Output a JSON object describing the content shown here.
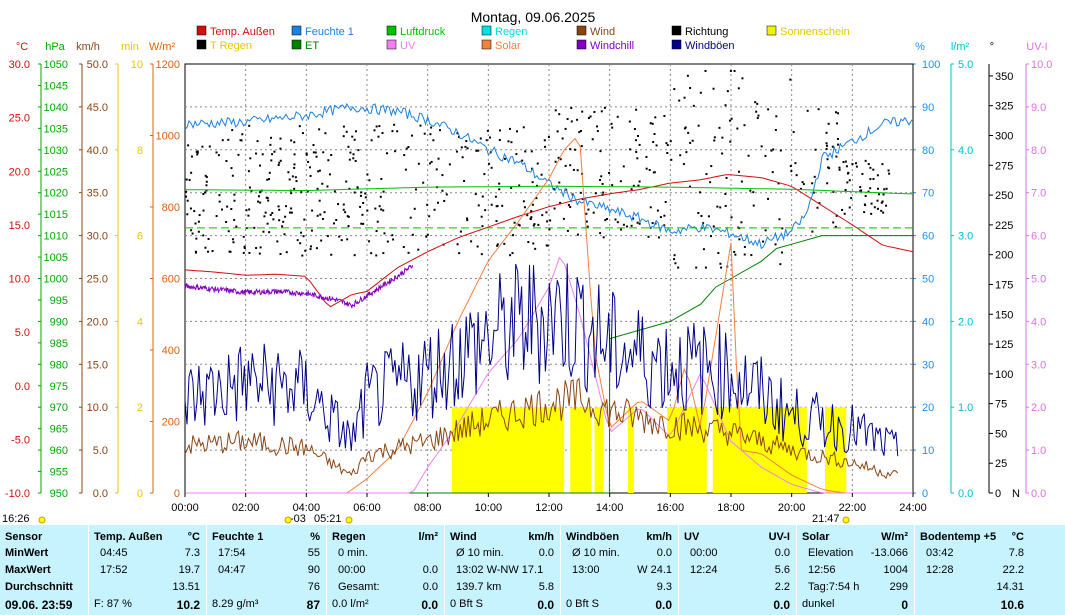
{
  "title": "Montag, 09.06.2025",
  "left_units": [
    {
      "text": "°C",
      "color": "#d01010"
    },
    {
      "text": "hPa",
      "color": "#00aa00"
    },
    {
      "text": "km/h",
      "color": "#8b4513"
    },
    {
      "text": "min",
      "color": "#e8c800"
    },
    {
      "text": "W/m²",
      "color": "#e06010"
    }
  ],
  "right_units": [
    {
      "text": "%",
      "color": "#1e90ff"
    },
    {
      "text": "l/m²",
      "color": "#00c0d0"
    },
    {
      "text": "°",
      "color": "#000000"
    },
    {
      "text": "UV-I",
      "color": "#e070e0"
    }
  ],
  "legend": [
    {
      "label": "Temp. Außen",
      "color": "#d01010"
    },
    {
      "label": "Feuchte 1",
      "color": "#1e80e0"
    },
    {
      "label": "Luftdruck",
      "color": "#00c000"
    },
    {
      "label": "Regen",
      "color": "#00e0e0"
    },
    {
      "label": "Wind",
      "color": "#8b4513"
    },
    {
      "label": "Richtung",
      "color": "#000000"
    },
    {
      "label": "Sonnenschein",
      "color": "#f0f000"
    },
    {
      "label": "T Regen",
      "color": "#000000"
    },
    {
      "label": "ET",
      "color": "#008000"
    },
    {
      "label": "UV",
      "color": "#f080f0"
    },
    {
      "label": "Solar",
      "color": "#f08040"
    },
    {
      "label": "Windchill",
      "color": "#8000c0"
    },
    {
      "label": "Windböen",
      "color": "#00008b"
    }
  ],
  "axes": {
    "temp": {
      "ticks": [
        "30.0",
        "25.0",
        "20.0",
        "15.0",
        "10.0",
        "5.0",
        "0.0",
        "-5.0",
        "-10.0"
      ],
      "color": "#d01010"
    },
    "hpa": {
      "ticks": [
        "1050",
        "1045",
        "1040",
        "1035",
        "1030",
        "1025",
        "1020",
        "1015",
        "1010",
        "1005",
        "1000",
        "995",
        "990",
        "985",
        "980",
        "975",
        "970",
        "965",
        "960",
        "955",
        "950"
      ],
      "color": "#00aa00"
    },
    "kmh": {
      "ticks": [
        "50.0",
        "45.0",
        "40.0",
        "35.0",
        "30.0",
        "25.0",
        "20.0",
        "15.0",
        "10.0",
        "5.0",
        "0.0"
      ],
      "color": "#8b4513"
    },
    "min": {
      "ticks": [
        "10",
        "8",
        "6",
        "4",
        "2",
        "0"
      ],
      "color": "#e8c800"
    },
    "wm2": {
      "ticks": [
        "1200",
        "1000",
        "800",
        "600",
        "400",
        "200",
        "0"
      ],
      "color": "#e06010"
    },
    "pct": {
      "ticks": [
        "100",
        "90",
        "80",
        "70",
        "60",
        "50",
        "40",
        "30",
        "20",
        "10",
        "0"
      ],
      "color": "#1e90ff"
    },
    "lm2": {
      "ticks": [
        "5.0",
        "4.0",
        "3.0",
        "2.0",
        "1.0",
        "0.0"
      ],
      "color": "#00c0d0"
    },
    "deg": {
      "ticks": [
        "350",
        "325",
        "300",
        "275",
        "250",
        "225",
        "200",
        "175",
        "150",
        "125",
        "100",
        "75",
        "50",
        "25",
        "0"
      ],
      "last": "N",
      "color": "#000000"
    },
    "uvi": {
      "ticks": [
        "10.0",
        "9.0",
        "8.0",
        "7.0",
        "6.0",
        "5.0",
        "4.0",
        "3.0",
        "2.0",
        "1.0",
        "0.0"
      ],
      "color": "#e070e0"
    },
    "x_ticks": [
      "00:00",
      "02:00",
      "04:00",
      "06:00",
      "08:00",
      "10:00",
      "12:00",
      "14:00",
      "16:00",
      "18:00",
      "20:00",
      "22:00",
      "24:00"
    ]
  },
  "time_markers": [
    {
      "text": "16:26"
    },
    {
      "text": "-03"
    },
    {
      "text": "05:21"
    },
    {
      "text": "21:47"
    }
  ],
  "chart_data": {
    "type": "line",
    "x_range": [
      0,
      24
    ],
    "x_unit": "hours",
    "series": [
      {
        "name": "Temp. Außen",
        "unit": "°C",
        "points": [
          [
            0,
            10.8
          ],
          [
            1,
            10.6
          ],
          [
            2,
            10.3
          ],
          [
            3,
            10.4
          ],
          [
            4,
            10.2
          ],
          [
            4.75,
            7.3
          ],
          [
            5.5,
            8.5
          ],
          [
            6,
            8.8
          ],
          [
            7,
            11
          ],
          [
            8,
            12.5
          ],
          [
            9,
            13.8
          ],
          [
            10,
            14.8
          ],
          [
            11,
            15.8
          ],
          [
            12,
            16.7
          ],
          [
            13,
            17.4
          ],
          [
            14,
            17.9
          ],
          [
            15,
            18.3
          ],
          [
            16,
            18.9
          ],
          [
            17,
            19.2
          ],
          [
            17.87,
            19.7
          ],
          [
            19,
            19.4
          ],
          [
            20,
            18.6
          ],
          [
            21,
            16.8
          ],
          [
            22,
            15.0
          ],
          [
            23,
            13.1
          ],
          [
            24,
            12.5
          ]
        ]
      },
      {
        "name": "Windchill",
        "unit": "°C",
        "points": [
          [
            0,
            9.3
          ],
          [
            1,
            9.0
          ],
          [
            2,
            8.7
          ],
          [
            3,
            8.8
          ],
          [
            4,
            8.6
          ],
          [
            5,
            8.0
          ],
          [
            5.5,
            7.5
          ],
          [
            6,
            8.4
          ],
          [
            7,
            10.2
          ],
          [
            7.5,
            11.2
          ]
        ]
      },
      {
        "name": "Feuchte 1",
        "unit": "%",
        "points": [
          [
            0,
            86
          ],
          [
            2,
            86.5
          ],
          [
            4,
            88
          ],
          [
            5.5,
            90
          ],
          [
            7,
            89
          ],
          [
            8,
            87
          ],
          [
            9,
            84
          ],
          [
            10,
            80
          ],
          [
            11,
            77
          ],
          [
            12,
            72
          ],
          [
            13,
            68
          ],
          [
            14,
            66
          ],
          [
            15,
            64
          ],
          [
            16,
            61
          ],
          [
            17,
            62
          ],
          [
            18,
            60.5
          ],
          [
            19,
            58
          ],
          [
            20,
            61
          ],
          [
            20.5,
            65
          ],
          [
            21,
            78
          ],
          [
            22,
            82
          ],
          [
            23,
            86
          ],
          [
            24,
            87
          ]
        ]
      },
      {
        "name": "Luftdruck",
        "unit": "hPa",
        "points": [
          [
            0,
            1020.7
          ],
          [
            4,
            1020.5
          ],
          [
            8,
            1021.3
          ],
          [
            12,
            1021.5
          ],
          [
            16,
            1021.3
          ],
          [
            20,
            1020.8
          ],
          [
            24,
            1019.7
          ]
        ]
      },
      {
        "name": "ET",
        "unit": "l/m²",
        "points": [
          [
            0,
            0
          ],
          [
            13.99,
            0
          ],
          [
            14,
            1.8
          ],
          [
            15,
            1.9
          ],
          [
            16,
            2.0
          ],
          [
            17,
            2.2
          ],
          [
            17.5,
            2.4
          ],
          [
            18,
            2.5
          ],
          [
            19,
            2.7
          ],
          [
            19.5,
            2.85
          ],
          [
            20,
            2.9
          ],
          [
            21,
            3.0
          ],
          [
            22,
            3.0
          ],
          [
            24,
            3.0
          ]
        ]
      },
      {
        "name": "Solar",
        "unit": "W/m²",
        "points": [
          [
            0,
            0
          ],
          [
            5.35,
            0
          ],
          [
            6,
            40
          ],
          [
            7,
            120
          ],
          [
            8,
            280
          ],
          [
            9,
            480
          ],
          [
            10,
            650
          ],
          [
            11,
            760
          ],
          [
            12,
            880
          ],
          [
            12.5,
            960
          ],
          [
            13,
            1004
          ],
          [
            13.5,
            400
          ],
          [
            14,
            180
          ],
          [
            15,
            260
          ],
          [
            16,
            200
          ],
          [
            16.5,
            360
          ],
          [
            17,
            180
          ],
          [
            18,
            700
          ],
          [
            18.3,
            120
          ],
          [
            19,
            110
          ],
          [
            20,
            50
          ],
          [
            21,
            10
          ],
          [
            21.75,
            0
          ],
          [
            24,
            0
          ]
        ]
      },
      {
        "name": "UV",
        "unit": "UV-I",
        "points": [
          [
            0,
            0
          ],
          [
            7.5,
            0
          ],
          [
            8,
            0.6
          ],
          [
            9,
            1.6
          ],
          [
            10,
            2.8
          ],
          [
            11,
            3.6
          ],
          [
            12,
            4.8
          ],
          [
            12.4,
            5.6
          ],
          [
            13,
            4.2
          ],
          [
            13.5,
            2.8
          ],
          [
            14,
            1.4
          ],
          [
            15,
            2.0
          ],
          [
            16,
            1.3
          ],
          [
            17,
            2.8
          ],
          [
            18,
            1.2
          ],
          [
            19,
            0.6
          ],
          [
            20,
            0.2
          ],
          [
            21,
            0
          ],
          [
            24,
            0
          ]
        ]
      },
      {
        "name": "Wind",
        "unit": "km/h",
        "points": [
          [
            0,
            5.5
          ],
          [
            2,
            6.0
          ],
          [
            4,
            5.2
          ],
          [
            5.5,
            2.0
          ],
          [
            6,
            4.5
          ],
          [
            8,
            6.0
          ],
          [
            10,
            8.5
          ],
          [
            12,
            10.5
          ],
          [
            13,
            11.0
          ],
          [
            14,
            9.5
          ],
          [
            16,
            8.0
          ],
          [
            18,
            7.0
          ],
          [
            20,
            5.0
          ],
          [
            22,
            3.5
          ],
          [
            23.5,
            2.0
          ]
        ]
      },
      {
        "name": "Windböen",
        "unit": "km/h",
        "points": [
          [
            0,
            11
          ],
          [
            2,
            13
          ],
          [
            4,
            12
          ],
          [
            5.5,
            6
          ],
          [
            6,
            11
          ],
          [
            8,
            14
          ],
          [
            10,
            18
          ],
          [
            12,
            21
          ],
          [
            13,
            20
          ],
          [
            14,
            17
          ],
          [
            16,
            15
          ],
          [
            18,
            14
          ],
          [
            20,
            9
          ],
          [
            22,
            7.5
          ],
          [
            23.5,
            5
          ]
        ]
      }
    ],
    "sunshine_bars": [
      [
        8.8,
        12.5
      ],
      [
        12.7,
        13.4
      ],
      [
        13.5,
        13.8
      ],
      [
        14.6,
        14.8
      ],
      [
        15.9,
        17.2
      ],
      [
        17.4,
        20.5
      ],
      [
        21.1,
        21.8
      ]
    ],
    "direction_range": [
      225,
      300
    ]
  },
  "table": {
    "columns": [
      {
        "header": "Sensor",
        "rows": [
          "MinWert",
          "MaxWert",
          "Durchschnitt"
        ],
        "footer": "09.06. 23:59"
      },
      {
        "header": "Temp. Außen",
        "unit": "°C",
        "rows": [
          [
            "04:45",
            "7.3"
          ],
          [
            "17:52",
            "19.7"
          ],
          [
            "",
            "13.51"
          ]
        ],
        "footer_l": "F: 87 %",
        "footer_r": "10.2"
      },
      {
        "header": "Feuchte 1",
        "unit": "%",
        "rows": [
          [
            "17:54",
            "55"
          ],
          [
            "04:47",
            "90"
          ],
          [
            "",
            "76"
          ]
        ],
        "footer_l": "8.29 g/m³",
        "footer_r": "87"
      },
      {
        "header": "Regen",
        "unit": "l/m²",
        "rows": [
          [
            "0 min.",
            ""
          ],
          [
            "00:00",
            "0.0"
          ],
          [
            "Gesamt:",
            "0.0"
          ]
        ],
        "footer_l": "0.0 l/m²",
        "footer_r": "0.0"
      },
      {
        "header": "Wind",
        "unit": "km/h",
        "rows": [
          [
            "Ø 10 min.",
            "0.0"
          ],
          [
            "13:02   W-NW 17.1",
            ""
          ],
          [
            "139.7 km",
            "5.8"
          ]
        ],
        "footer_l": "0 Bft S",
        "footer_r": "0.0"
      },
      {
        "header": "Windböen",
        "unit": "km/h",
        "rows": [
          [
            "Ø 10 min.",
            "0.0"
          ],
          [
            "13:00",
            "W 24.1"
          ],
          [
            "",
            "9.3"
          ]
        ],
        "footer_l": "0 Bft S",
        "footer_r": "0.0"
      },
      {
        "header": "UV",
        "unit": "UV-I",
        "rows": [
          [
            "00:00",
            "0.0"
          ],
          [
            "12:24",
            "5.6"
          ],
          [
            "",
            "2.2"
          ]
        ],
        "footer_l": "",
        "footer_r": "0.0"
      },
      {
        "header": "Solar",
        "unit": "W/m²",
        "rows": [
          [
            "Elevation",
            "-13.066"
          ],
          [
            "12:56",
            "1004"
          ],
          [
            "Tag:7:54 h",
            "299"
          ]
        ],
        "footer_l": "dunkel",
        "footer_r": "0"
      },
      {
        "header": "Bodentemp +5",
        "unit": "°C",
        "rows": [
          [
            "03:42",
            "7.8"
          ],
          [
            "12:28",
            "22.2"
          ],
          [
            "",
            "14.31"
          ]
        ],
        "footer_l": "",
        "footer_r": "10.6"
      }
    ]
  }
}
